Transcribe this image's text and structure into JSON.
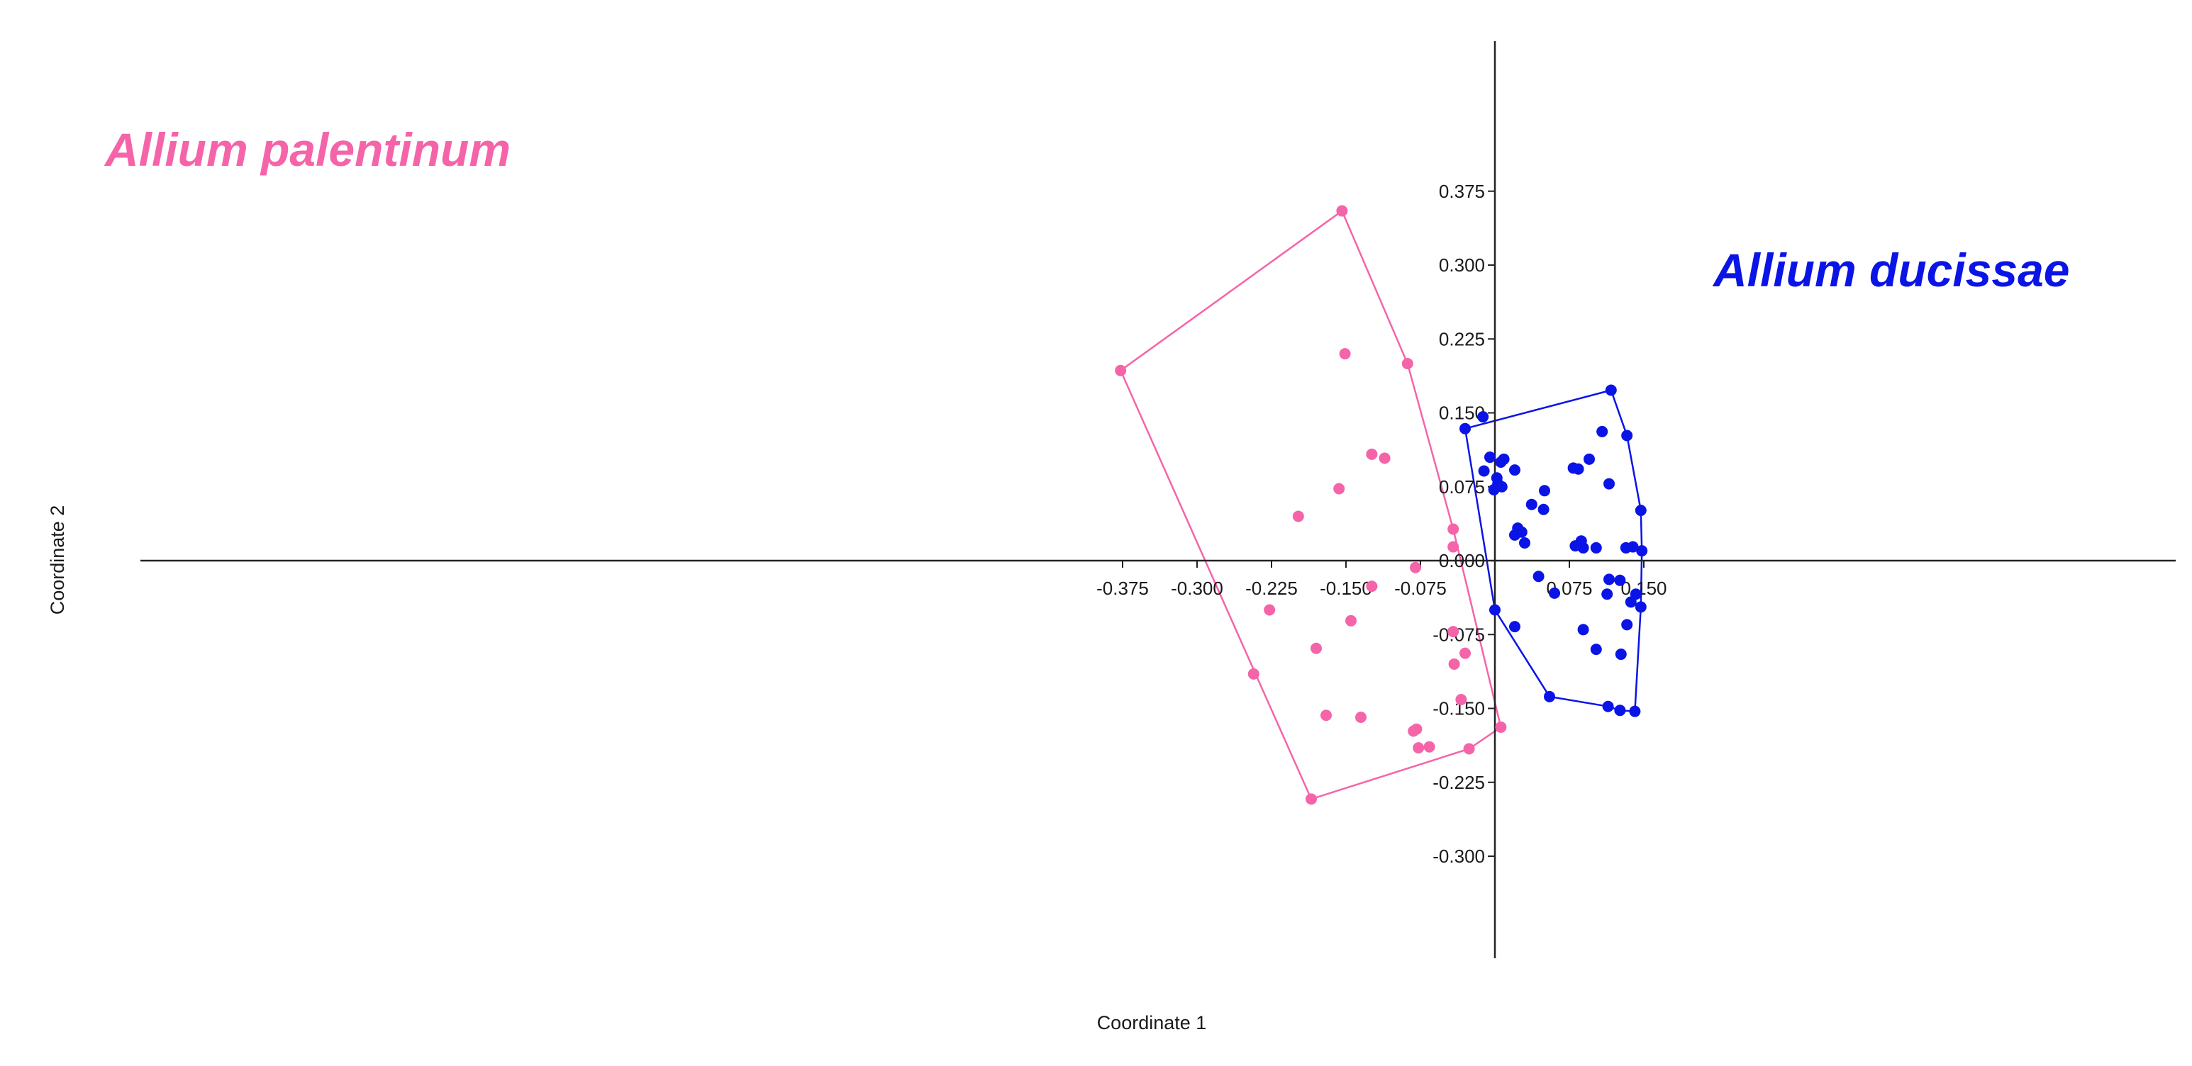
{
  "chart_data": {
    "type": "scatter",
    "xlabel": "Coordinate 1",
    "ylabel": "Coordinate 2",
    "xlim": [
      -0.4,
      0.2
    ],
    "ylim": [
      -0.3,
      0.39
    ],
    "xticks": [
      "-0.375",
      "-0.300",
      "-0.225",
      "-0.150",
      "-0.075",
      "0.075",
      "0.150"
    ],
    "xtick_values": [
      -0.375,
      -0.3,
      -0.225,
      -0.15,
      -0.075,
      0.075,
      0.15
    ],
    "yticks": [
      "0.375",
      "0.300",
      "0.225",
      "0.150",
      "0.075",
      "0.000",
      "-0.075",
      "-0.150",
      "-0.225",
      "-0.300"
    ],
    "ytick_values": [
      0.375,
      0.3,
      0.225,
      0.15,
      0.075,
      0.0,
      -0.075,
      -0.15,
      -0.225,
      -0.3
    ],
    "grid": false,
    "groups": [
      {
        "label": "Allium palentinum",
        "color": "#f564a9",
        "points": [
          [
            -0.154,
            0.355
          ],
          [
            -0.377,
            0.193
          ],
          [
            -0.088,
            0.2
          ],
          [
            -0.151,
            0.21
          ],
          [
            -0.124,
            0.108
          ],
          [
            -0.111,
            0.104
          ],
          [
            -0.157,
            0.073
          ],
          [
            -0.198,
            0.045
          ],
          [
            -0.042,
            0.032
          ],
          [
            -0.042,
            0.014
          ],
          [
            -0.08,
            -0.007
          ],
          [
            -0.124,
            -0.026
          ],
          [
            -0.227,
            -0.05
          ],
          [
            -0.145,
            -0.061
          ],
          [
            -0.18,
            -0.089
          ],
          [
            -0.042,
            -0.072
          ],
          [
            -0.03,
            -0.094
          ],
          [
            -0.041,
            -0.105
          ],
          [
            -0.034,
            -0.141
          ],
          [
            -0.243,
            -0.115
          ],
          [
            -0.17,
            -0.157
          ],
          [
            -0.135,
            -0.159
          ],
          [
            -0.082,
            -0.173
          ],
          [
            -0.079,
            -0.171
          ],
          [
            -0.077,
            -0.19
          ],
          [
            -0.066,
            -0.189
          ],
          [
            -0.026,
            -0.191
          ],
          [
            -0.185,
            -0.242
          ],
          [
            0.006,
            -0.169
          ]
        ],
        "hull": [
          [
            -0.154,
            0.355
          ],
          [
            -0.088,
            0.2
          ],
          [
            -0.042,
            0.032
          ],
          [
            0.006,
            -0.169
          ],
          [
            -0.026,
            -0.191
          ],
          [
            -0.185,
            -0.242
          ],
          [
            -0.377,
            0.193
          ]
        ]
      },
      {
        "label": "Allium ducissae",
        "color": "#0a14e6",
        "points": [
          [
            0.117,
            0.173
          ],
          [
            0.133,
            0.127
          ],
          [
            0.147,
            0.051
          ],
          [
            0.148,
            0.01
          ],
          [
            0.147,
            -0.047
          ],
          [
            0.141,
            -0.153
          ],
          [
            0.126,
            -0.152
          ],
          [
            0.114,
            -0.148
          ],
          [
            0.055,
            -0.138
          ],
          [
            0.0,
            -0.05
          ],
          [
            -0.03,
            0.134
          ],
          [
            -0.012,
            0.146
          ],
          [
            0.108,
            0.131
          ],
          [
            -0.005,
            0.105
          ],
          [
            0.009,
            0.103
          ],
          [
            0.006,
            0.1
          ],
          [
            0.02,
            0.092
          ],
          [
            -0.011,
            0.091
          ],
          [
            0.079,
            0.094
          ],
          [
            0.084,
            0.093
          ],
          [
            0.095,
            0.103
          ],
          [
            0.115,
            0.078
          ],
          [
            0.002,
            0.084
          ],
          [
            0.003,
            0.078
          ],
          [
            0.007,
            0.075
          ],
          [
            -0.001,
            0.072
          ],
          [
            0.05,
            0.071
          ],
          [
            0.049,
            0.052
          ],
          [
            0.037,
            0.057
          ],
          [
            0.023,
            0.033
          ],
          [
            0.027,
            0.029
          ],
          [
            0.02,
            0.026
          ],
          [
            0.03,
            0.018
          ],
          [
            0.081,
            0.015
          ],
          [
            0.087,
            0.02
          ],
          [
            0.089,
            0.013
          ],
          [
            0.102,
            0.013
          ],
          [
            0.132,
            0.013
          ],
          [
            0.139,
            0.014
          ],
          [
            0.044,
            -0.016
          ],
          [
            0.06,
            -0.033
          ],
          [
            0.113,
            -0.034
          ],
          [
            0.115,
            -0.019
          ],
          [
            0.126,
            -0.02
          ],
          [
            0.137,
            -0.042
          ],
          [
            0.142,
            -0.034
          ],
          [
            0.133,
            -0.065
          ],
          [
            0.02,
            -0.067
          ],
          [
            0.089,
            -0.07
          ],
          [
            0.102,
            -0.09
          ],
          [
            0.127,
            -0.095
          ]
        ],
        "hull": [
          [
            -0.03,
            0.134
          ],
          [
            0.117,
            0.173
          ],
          [
            0.133,
            0.127
          ],
          [
            0.147,
            0.051
          ],
          [
            0.148,
            0.01
          ],
          [
            0.147,
            -0.047
          ],
          [
            0.141,
            -0.153
          ],
          [
            0.126,
            -0.152
          ],
          [
            0.114,
            -0.148
          ],
          [
            0.055,
            -0.138
          ],
          [
            0.0,
            -0.05
          ]
        ]
      }
    ]
  }
}
